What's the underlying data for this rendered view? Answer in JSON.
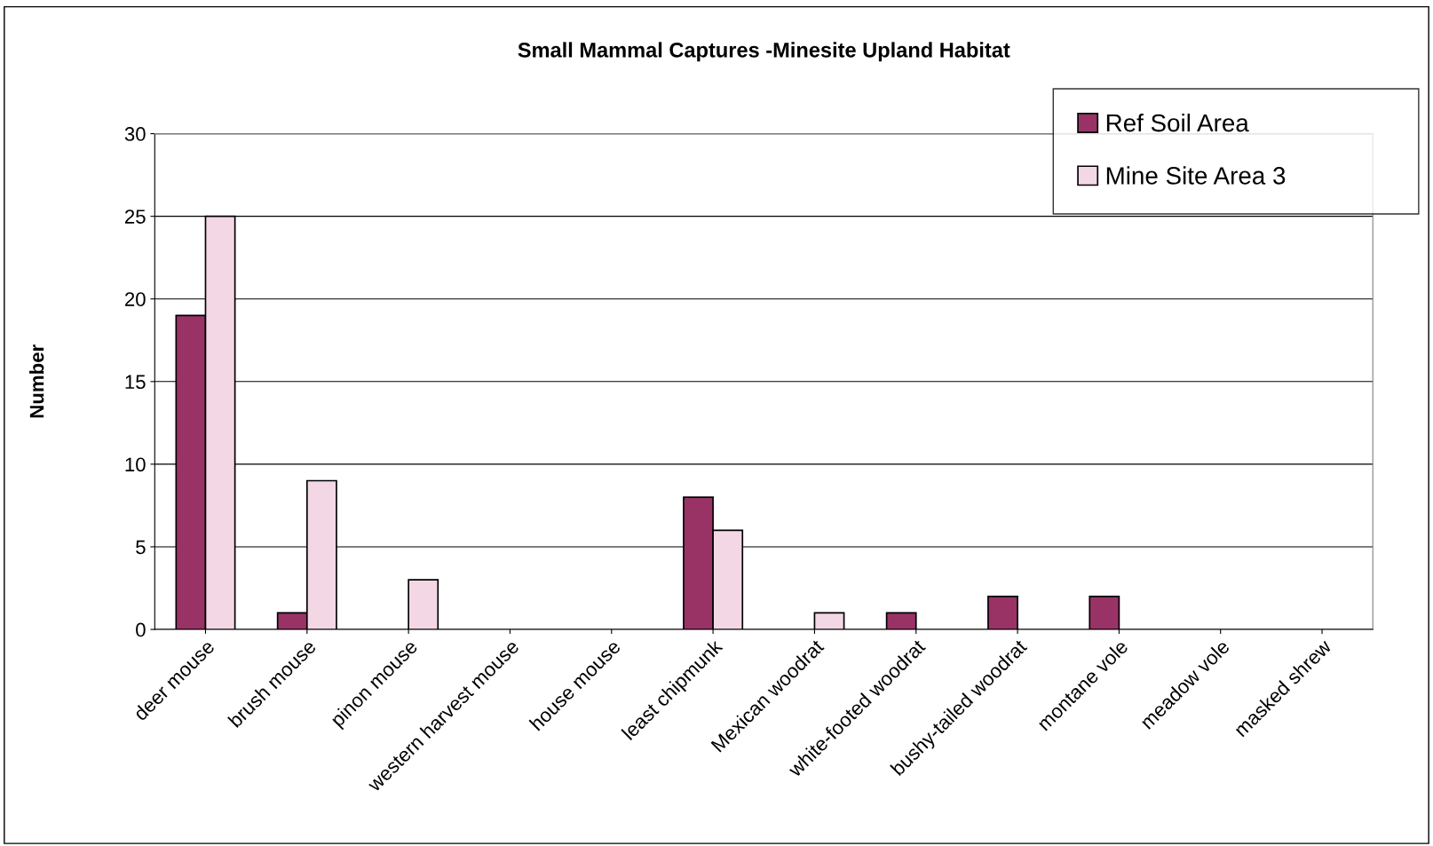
{
  "chart_data": {
    "type": "bar",
    "title": "Small Mammal Captures -Minesite Upland Habitat",
    "ylabel": "Number",
    "categories": [
      "deer mouse",
      "brush mouse",
      "pinon mouse",
      "western harvest mouse",
      "house mouse",
      "least chipmunk",
      "Mexican woodrat",
      "white-footed woodrat",
      "bushy-tailed woodrat",
      "montane vole",
      "meadow vole",
      "masked shrew"
    ],
    "series": [
      {
        "name": "Ref Soil Area",
        "color": "#993366",
        "values": [
          19,
          1,
          0,
          0,
          0,
          8,
          0,
          1,
          2,
          2,
          0,
          0
        ]
      },
      {
        "name": "Mine Site Area 3",
        "color": "#f4d7e5",
        "values": [
          25,
          9,
          3,
          0,
          0,
          6,
          1,
          0,
          0,
          0,
          0,
          0
        ]
      }
    ],
    "ylim": [
      0,
      30
    ],
    "yticks": [
      0,
      5,
      10,
      15,
      20,
      25,
      30
    ],
    "grid": "y",
    "legend": "top right"
  }
}
